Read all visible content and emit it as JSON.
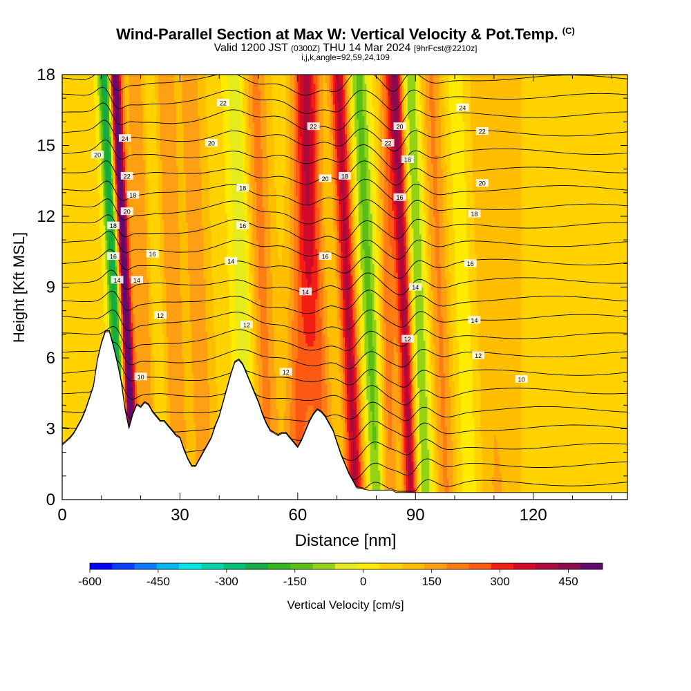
{
  "header": {
    "title": "Wind-Parallel Section at Max W: Vertical Velocity & Pot.Temp.",
    "copyright": "(C)",
    "valid_prefix": "Valid 1200 JST",
    "valid_utc": "(0300Z)",
    "valid_date": "THU 14 Mar 2024",
    "forecast": "[9hrFcst@2210z]",
    "indices": "i,j,k,angle=92,59,24,109"
  },
  "chart_data": {
    "type": "heatmap",
    "xlabel": "Distance [nm]",
    "ylabel": "Height [Kft MSL]",
    "xlim": [
      0,
      144
    ],
    "ylim": [
      0,
      18
    ],
    "x_ticks": [
      0,
      30,
      60,
      90,
      120
    ],
    "y_ticks": [
      0,
      3,
      6,
      9,
      12,
      15,
      18
    ],
    "colorbar": {
      "label": "Vertical Velocity [cm/s]",
      "ticks": [
        -600,
        -450,
        -300,
        -150,
        0,
        150,
        300,
        450
      ],
      "range": [
        -600,
        525
      ],
      "colors": [
        "#0000ff",
        "#0a3cff",
        "#0a78ff",
        "#00b4f0",
        "#00e6e6",
        "#00d2aa",
        "#00be78",
        "#14aa46",
        "#32b41e",
        "#5abe14",
        "#96d214",
        "#e6eb1e",
        "#ffeb00",
        "#ffd200",
        "#ffbe00",
        "#ffa014",
        "#ff7d14",
        "#ff5a14",
        "#f51e14",
        "#d20a28",
        "#aa0a3c",
        "#8c0a50",
        "#640a6e"
      ]
    },
    "terrain_kft": [
      [
        0,
        2.3
      ],
      [
        2,
        2.6
      ],
      [
        3,
        2.8
      ],
      [
        4,
        3.1
      ],
      [
        5,
        3.4
      ],
      [
        6,
        3.8
      ],
      [
        7,
        4.3
      ],
      [
        8,
        4.8
      ],
      [
        9,
        5.9
      ],
      [
        10,
        6.6
      ],
      [
        11,
        7.1
      ],
      [
        12,
        7.1
      ],
      [
        13,
        6.5
      ],
      [
        14,
        5.8
      ],
      [
        15,
        5.0
      ],
      [
        16,
        3.8
      ],
      [
        17,
        3.0
      ],
      [
        18,
        3.6
      ],
      [
        19,
        4.0
      ],
      [
        20,
        3.9
      ],
      [
        21,
        4.1
      ],
      [
        22,
        4.0
      ],
      [
        23,
        3.7
      ],
      [
        24,
        3.5
      ],
      [
        25,
        3.3
      ],
      [
        26,
        3.3
      ],
      [
        27,
        3.1
      ],
      [
        28,
        2.9
      ],
      [
        29,
        2.7
      ],
      [
        30,
        2.6
      ],
      [
        31,
        2.1
      ],
      [
        32,
        1.7
      ],
      [
        33,
        1.4
      ],
      [
        34,
        1.4
      ],
      [
        35,
        1.7
      ],
      [
        36,
        2.0
      ],
      [
        37,
        2.3
      ],
      [
        38,
        2.6
      ],
      [
        39,
        3.1
      ],
      [
        40,
        3.5
      ],
      [
        41,
        4.1
      ],
      [
        42,
        4.7
      ],
      [
        43,
        5.3
      ],
      [
        44,
        5.8
      ],
      [
        45,
        5.9
      ],
      [
        46,
        5.7
      ],
      [
        47,
        5.3
      ],
      [
        48,
        4.9
      ],
      [
        49,
        4.5
      ],
      [
        50,
        4.1
      ],
      [
        51,
        3.6
      ],
      [
        52,
        3.2
      ],
      [
        53,
        2.9
      ],
      [
        54,
        2.8
      ],
      [
        55,
        2.7
      ],
      [
        56,
        2.8
      ],
      [
        57,
        2.8
      ],
      [
        58,
        2.6
      ],
      [
        59,
        2.4
      ],
      [
        60,
        2.2
      ],
      [
        61,
        2.5
      ],
      [
        62,
        2.9
      ],
      [
        63,
        3.3
      ],
      [
        64,
        3.6
      ],
      [
        65,
        3.8
      ],
      [
        66,
        3.7
      ],
      [
        67,
        3.5
      ],
      [
        68,
        3.2
      ],
      [
        69,
        2.9
      ],
      [
        70,
        2.4
      ],
      [
        71,
        1.9
      ],
      [
        72,
        1.5
      ],
      [
        73,
        1.1
      ],
      [
        74,
        0.8
      ],
      [
        75,
        0.5
      ],
      [
        78,
        0.4
      ],
      [
        84,
        0.4
      ],
      [
        85,
        0.3
      ],
      [
        100,
        0.3
      ],
      [
        144,
        0.3
      ]
    ],
    "theta_labels": [
      "10",
      "12",
      "14",
      "16",
      "18",
      "20",
      "22",
      "24"
    ],
    "updraft_peak_cm_s": 525,
    "downdraft_peak_cm_s": -350
  }
}
